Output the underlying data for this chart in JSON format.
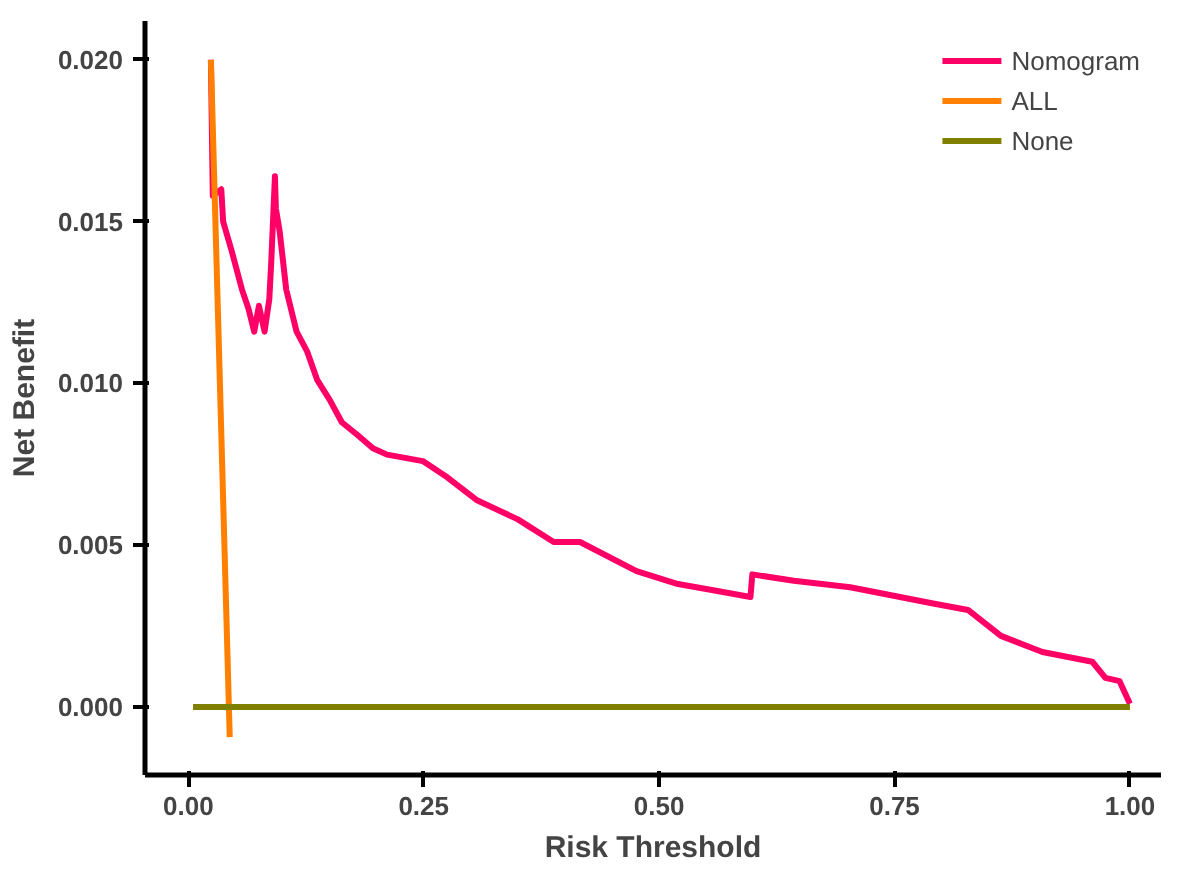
{
  "chart_data": {
    "type": "line",
    "xlabel": "Risk Threshold",
    "ylabel": "Net Benefit",
    "xlim": [
      -0.046,
      1.033
    ],
    "ylim": [
      -0.0021,
      0.0212
    ],
    "xticks": [
      {
        "value": 0,
        "label": "0.00"
      },
      {
        "value": 0.25,
        "label": "0.25"
      },
      {
        "value": 0.5,
        "label": "0.50"
      },
      {
        "value": 0.75,
        "label": "0.75"
      },
      {
        "value": 1,
        "label": "1.00"
      }
    ],
    "yticks": [
      {
        "value": 0,
        "label": "0.000"
      },
      {
        "value": 0.005,
        "label": "0.005"
      },
      {
        "value": 0.01,
        "label": "0.010"
      },
      {
        "value": 0.015,
        "label": "0.015"
      },
      {
        "value": 0.02,
        "label": "0.020"
      }
    ],
    "grid": false,
    "legend": "top right",
    "marker": "none",
    "line_style": "solid",
    "series": [
      {
        "name": "Nomogram",
        "color": "#ff0066",
        "x": [
          0.024,
          0.026,
          0.035,
          0.037,
          0.046,
          0.057,
          0.064,
          0.07,
          0.075,
          0.081,
          0.086,
          0.088,
          0.092,
          0.093,
          0.097,
          0.104,
          0.115,
          0.126,
          0.137,
          0.15,
          0.163,
          0.18,
          0.196,
          0.211,
          0.249,
          0.275,
          0.306,
          0.35,
          0.388,
          0.416,
          0.476,
          0.52,
          0.559,
          0.597,
          0.599,
          0.643,
          0.703,
          0.791,
          0.828,
          0.863,
          0.907,
          0.96,
          0.974,
          0.989,
          1.0
        ],
        "values": [
          0.02,
          0.0158,
          0.016,
          0.015,
          0.0141,
          0.0129,
          0.0123,
          0.0116,
          0.0124,
          0.0116,
          0.0126,
          0.0137,
          0.0164,
          0.0154,
          0.0147,
          0.0129,
          0.0116,
          0.011,
          0.0101,
          0.0095,
          0.0088,
          0.0084,
          0.008,
          0.0078,
          0.0076,
          0.0071,
          0.0064,
          0.0058,
          0.0051,
          0.0051,
          0.0042,
          0.0038,
          0.0036,
          0.0034,
          0.0041,
          0.0039,
          0.0037,
          0.0032,
          0.003,
          0.0022,
          0.0017,
          0.0014,
          0.0009,
          0.0008,
          0.0001
        ]
      },
      {
        "name": "ALL",
        "color": "#ff8000",
        "x": [
          0.024,
          0.044
        ],
        "values": [
          0.02,
          -0.00093
        ]
      },
      {
        "name": "None",
        "color": "#808000",
        "x": [
          0.005,
          1.0
        ],
        "values": [
          0,
          0
        ]
      }
    ]
  }
}
